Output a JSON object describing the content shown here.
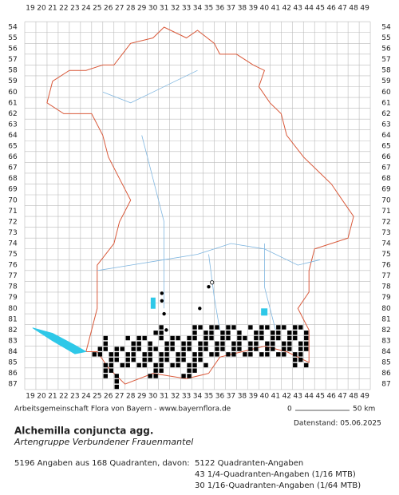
{
  "map": {
    "columns": [
      19,
      20,
      21,
      22,
      23,
      24,
      25,
      26,
      27,
      28,
      29,
      30,
      31,
      32,
      33,
      34,
      35,
      36,
      37,
      38,
      39,
      40,
      41,
      42,
      43,
      44,
      45,
      46,
      47,
      48,
      49
    ],
    "rows": [
      54,
      55,
      56,
      57,
      58,
      59,
      60,
      61,
      62,
      63,
      64,
      65,
      66,
      67,
      68,
      69,
      70,
      71,
      72,
      73,
      74,
      75,
      76,
      77,
      78,
      79,
      80,
      81,
      82,
      83,
      84,
      85,
      86,
      87
    ]
  },
  "footer": {
    "credit": "Arbeitsgemeinschaft Flora von Bayern - www.bayernflora.de",
    "scale_start": "0",
    "scale_end": "50 km",
    "date": "Datenstand: 05.06.2025"
  },
  "species": {
    "name": "Alchemilla conjuncta agg.",
    "common_name": "Artengruppe Verbundener Frauenmantel"
  },
  "stats": {
    "total": "5196 Angaben aus 168 Quadranten, davon:",
    "lines": [
      "5122 Quadranten-Angaben",
      "43 1/4-Quadranten-Angaben (1/16 MTB)",
      "30 1/16-Quadranten-Angaben (1/64 MTB)"
    ]
  }
}
